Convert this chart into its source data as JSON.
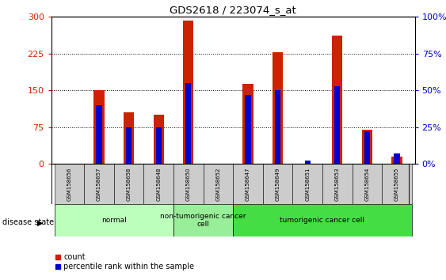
{
  "title": "GDS2618 / 223074_s_at",
  "samples": [
    "GSM158656",
    "GSM158657",
    "GSM158658",
    "GSM158648",
    "GSM158650",
    "GSM158652",
    "GSM158647",
    "GSM158649",
    "GSM158651",
    "GSM158653",
    "GSM158654",
    "GSM158655"
  ],
  "count_values": [
    0,
    150,
    105,
    100,
    293,
    0,
    163,
    227,
    0,
    262,
    70,
    15
  ],
  "percentile_values": [
    0,
    40,
    25,
    25,
    55,
    0,
    47,
    50,
    2,
    53,
    22,
    7
  ],
  "groups": [
    {
      "label": "normal",
      "start": 0,
      "end": 4,
      "color": "#bbffbb"
    },
    {
      "label": "non-tumorigenic cancer\ncell",
      "start": 4,
      "end": 6,
      "color": "#99ee99"
    },
    {
      "label": "tumorigenic cancer cell",
      "start": 6,
      "end": 12,
      "color": "#44dd44"
    }
  ],
  "ylim_left": [
    0,
    300
  ],
  "ylim_right": [
    0,
    100
  ],
  "yticks_left": [
    0,
    75,
    150,
    225,
    300
  ],
  "yticks_right": [
    0,
    25,
    50,
    75,
    100
  ],
  "bar_width": 0.35,
  "count_color": "#cc2200",
  "percentile_color": "#0000cc",
  "background_color": "#ffffff",
  "tick_bg_color": "#cccccc",
  "disease_state_label": "disease state",
  "legend_count": "count",
  "legend_percentile": "percentile rank within the sample"
}
